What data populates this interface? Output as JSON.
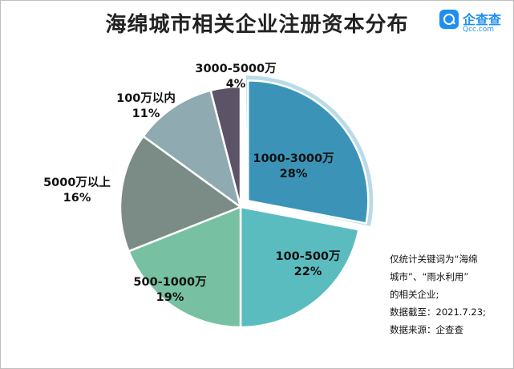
{
  "title": "海绵城市相关企业注册资本分布",
  "logo": {
    "name": "企查查",
    "domain": "Qcc.com"
  },
  "colors": [
    "#3b94b8",
    "#5bbcbf",
    "#77c0a2",
    "#7b8c87",
    "#8faab0",
    "#5d5366"
  ],
  "chart_data": {
    "type": "pie",
    "title": "海绵城市相关企业注册资本分布",
    "slices": [
      {
        "label": "1000-3000万",
        "value": 28,
        "value_label": "28%"
      },
      {
        "label": "100-500万",
        "value": 22,
        "value_label": "22%"
      },
      {
        "label": "500-1000万",
        "value": 19,
        "value_label": "19%"
      },
      {
        "label": "5000万以上",
        "value": 16,
        "value_label": "16%"
      },
      {
        "label": "100万以内",
        "value": 11,
        "value_label": "11%"
      },
      {
        "label": "3000-5000万",
        "value": 4,
        "value_label": "4%"
      }
    ],
    "exploded_slice": "1000-3000万"
  },
  "notes": [
    "仅统计关键词为“海绵",
    "城市”、“雨水利用”",
    "的相关企业;",
    "数据截至：2021.7.23;",
    "数据来源：企查查"
  ]
}
